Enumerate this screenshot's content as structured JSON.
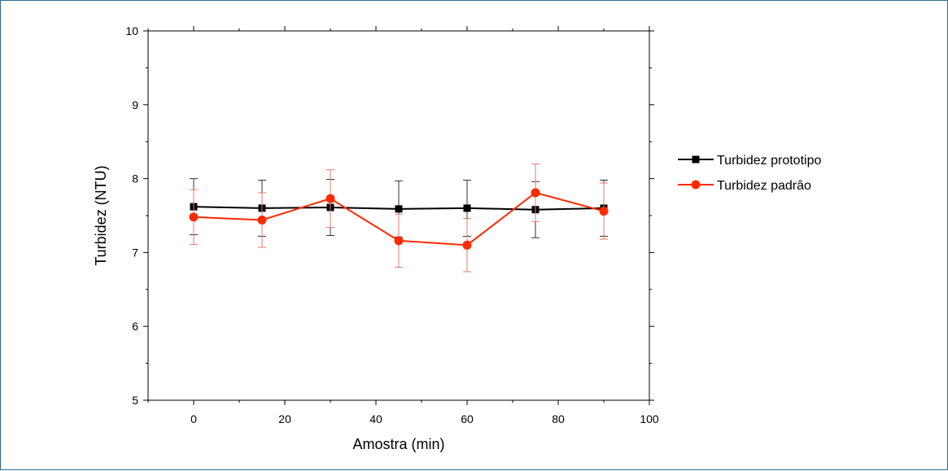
{
  "chart_data": {
    "type": "line",
    "title": "",
    "xlabel": "Amostra (min)",
    "ylabel": "Turbidez (NTU)",
    "xlim": [
      -10,
      100
    ],
    "ylim": [
      5,
      10
    ],
    "xticks": [
      0,
      20,
      40,
      60,
      80,
      100
    ],
    "yticks": [
      5,
      6,
      7,
      8,
      9,
      10
    ],
    "x_tick_labels": [
      "0",
      "20",
      "40",
      "60",
      "80",
      "100"
    ],
    "y_tick_labels": [
      "5",
      "6",
      "7",
      "8",
      "9",
      "10"
    ],
    "grid": false,
    "legend_position": "right",
    "x": [
      0,
      15,
      30,
      45,
      60,
      75,
      90
    ],
    "series": [
      {
        "name": "Turbidez  prototipo",
        "label": "Turbidez  prototipo",
        "color": "#000000",
        "error_color": "#333333",
        "marker": "square",
        "values": [
          7.62,
          7.6,
          7.61,
          7.59,
          7.6,
          7.58,
          7.6
        ],
        "errors": [
          0.38,
          0.38,
          0.38,
          0.38,
          0.38,
          0.38,
          0.38
        ]
      },
      {
        "name": "Turbidez  padrão",
        "label": "Turbidez  padrâo",
        "color": "#ff2a00",
        "error_color": "#e87a6a",
        "marker": "circle",
        "values": [
          7.48,
          7.44,
          7.73,
          7.16,
          7.1,
          7.81,
          7.56
        ],
        "errors": [
          0.37,
          0.37,
          0.39,
          0.36,
          0.36,
          0.39,
          0.38
        ]
      }
    ]
  }
}
